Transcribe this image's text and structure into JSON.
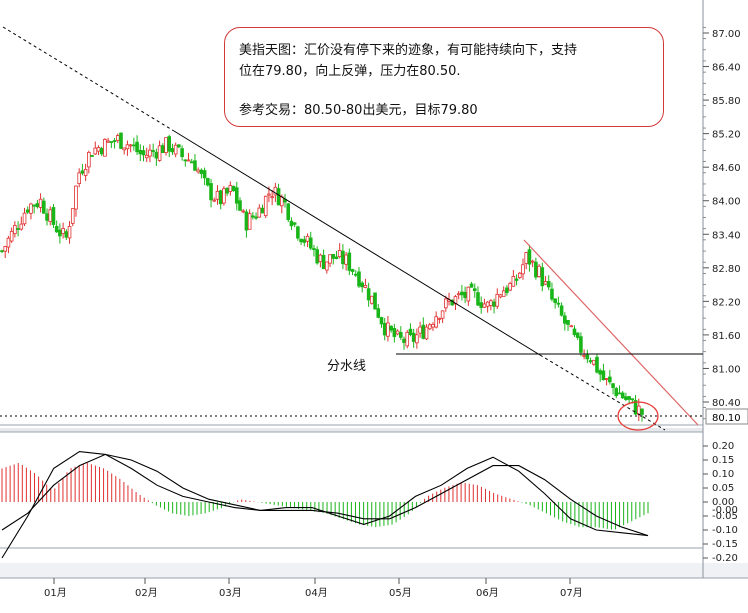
{
  "annotation": {
    "line1": "美指天图：汇价没有停下来的迹象，有可能持续向下，支持",
    "line2": "位在79.80，向上反弹，压力在80.50.",
    "line3": "参考交易：80.50-80出美元，目标79.80"
  },
  "labels": {
    "dividing_line": "分水线"
  },
  "colors": {
    "up": "#e03030",
    "down": "#19b519",
    "trend": "#000000",
    "channel": "#e06666",
    "highlight": "#e53935"
  },
  "chart_data": [
    {
      "type": "candlestick",
      "title": "",
      "x_ticks": [
        "01月",
        "02月",
        "03月",
        "04月",
        "05月",
        "06月",
        "07月"
      ],
      "y_ticks": [
        "87.00",
        "86.40",
        "85.80",
        "85.20",
        "84.60",
        "84.00",
        "83.40",
        "82.80",
        "82.20",
        "81.60",
        "81.00",
        "80.40"
      ],
      "ylim": [
        79.9,
        87.25
      ],
      "current_price": "80.10",
      "dividing_line_level": 81.27,
      "approx_closes": [
        83.1,
        83.5,
        83.9,
        84.0,
        83.6,
        83.3,
        84.5,
        84.9,
        85.0,
        85.1,
        85.0,
        84.8,
        84.9,
        85.0,
        84.8,
        84.7,
        84.2,
        84.0,
        84.2,
        83.6,
        83.8,
        84.2,
        84.0,
        83.5,
        83.2,
        82.9,
        83.0,
        82.9,
        82.6,
        82.2,
        81.7,
        81.5,
        81.5,
        81.7,
        82.0,
        82.2,
        82.3,
        82.3,
        82.1,
        82.4,
        82.5,
        83.0,
        82.7,
        82.2,
        81.8,
        81.4,
        81.2,
        80.8,
        80.6,
        80.4,
        80.2
      ],
      "grid": false
    },
    {
      "type": "macd",
      "y_ticks": [
        "0.20",
        "0.15",
        "0.10",
        "0.05",
        "0.00",
        "-0.00",
        "-0.05",
        "-0.10",
        "-0.15",
        "-0.20"
      ],
      "ylim": [
        -0.21,
        0.21
      ],
      "histogram": [
        0.12,
        0.14,
        0.1,
        0.04,
        0.12,
        0.14,
        0.12,
        0.08,
        0.03,
        -0.01,
        -0.04,
        -0.05,
        -0.04,
        -0.02,
        0.01,
        0.0,
        -0.01,
        -0.02,
        -0.03,
        -0.04,
        -0.06,
        -0.08,
        -0.09,
        -0.08,
        -0.04,
        0.02,
        0.05,
        0.07,
        0.06,
        0.03,
        0.01,
        -0.01,
        -0.04,
        -0.07,
        -0.09,
        -0.09,
        -0.1,
        -0.07,
        -0.04
      ],
      "dif": [
        -0.2,
        -0.05,
        0.12,
        0.18,
        0.17,
        0.12,
        0.06,
        0.02,
        0.0,
        -0.02,
        -0.03,
        -0.02,
        -0.02,
        -0.05,
        -0.08,
        -0.05,
        0.02,
        0.06,
        0.12,
        0.16,
        0.11,
        0.03,
        -0.06,
        -0.1,
        -0.11,
        -0.12
      ],
      "dea": [
        -0.1,
        -0.04,
        0.06,
        0.13,
        0.17,
        0.15,
        0.11,
        0.05,
        0.01,
        -0.01,
        -0.03,
        -0.03,
        -0.03,
        -0.04,
        -0.06,
        -0.06,
        -0.02,
        0.03,
        0.08,
        0.13,
        0.13,
        0.08,
        0.01,
        -0.05,
        -0.09,
        -0.12
      ]
    }
  ]
}
